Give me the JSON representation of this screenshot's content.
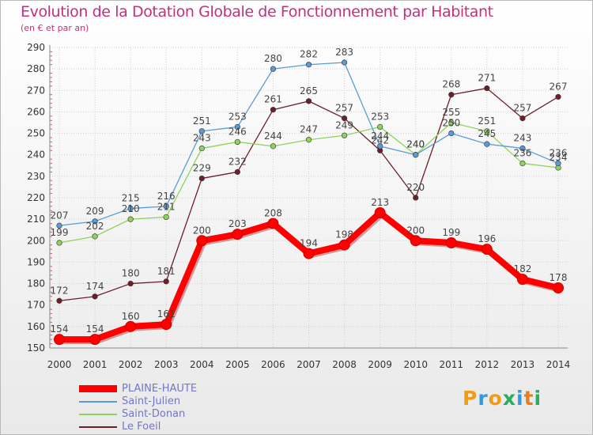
{
  "chart_data": {
    "type": "line",
    "title": "Evolution de la Dotation Globale de Fonctionnement par Habitant",
    "subtitle": "(en € et par an)",
    "xlabel": "",
    "ylabel": "",
    "ylim": [
      150,
      290
    ],
    "yticks": [
      150,
      160,
      170,
      180,
      190,
      200,
      210,
      220,
      230,
      240,
      250,
      260,
      270,
      280,
      290
    ],
    "categories": [
      "2000",
      "2001",
      "2002",
      "2003",
      "2004",
      "2005",
      "2006",
      "2007",
      "2008",
      "2009",
      "2010",
      "2011",
      "2012",
      "2013",
      "2014"
    ],
    "series": [
      {
        "name": "Le Foeil",
        "color": "#6b1f2a",
        "values": [
          172,
          174,
          180,
          181,
          229,
          232,
          261,
          265,
          257,
          242,
          220,
          268,
          271,
          257,
          267
        ]
      },
      {
        "name": "Saint-Donan",
        "color": "#8ed35d",
        "values": [
          199,
          202,
          210,
          211,
          243,
          246,
          244,
          247,
          249,
          253,
          240,
          255,
          251,
          236,
          234
        ]
      },
      {
        "name": "Saint-Julien",
        "color": "#5b9bd5",
        "values": [
          207,
          209,
          215,
          216,
          251,
          253,
          280,
          282,
          283,
          244,
          240,
          250,
          245,
          243,
          236
        ]
      },
      {
        "name": "PLAINE-HAUTE",
        "color": "#ff0000",
        "values": [
          154,
          154,
          160,
          161,
          200,
          203,
          208,
          194,
          198,
          213,
          200,
          199,
          196,
          182,
          178
        ]
      }
    ],
    "legend": [
      "PLAINE-HAUTE",
      "Saint-Julien",
      "Saint-Donan",
      "Le Foeil"
    ],
    "legend_position": "bottom-left",
    "grid": true
  },
  "logo": {
    "text": "Proxiti",
    "colors": [
      "#f39c12",
      "#3498db",
      "#f39c12",
      "#27ae60",
      "#3498db",
      "#e67e22",
      "#27ae60"
    ]
  }
}
